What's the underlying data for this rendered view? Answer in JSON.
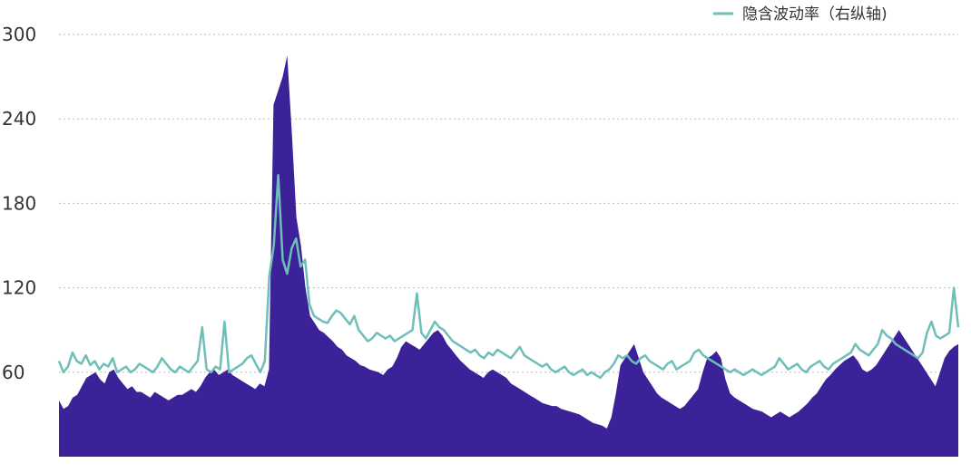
{
  "chart_data": {
    "type": "area",
    "title": "",
    "xlabel": "",
    "ylabel": "",
    "ylim": [
      0,
      300
    ],
    "yticks": [
      "60",
      "120",
      "180",
      "240",
      "300"
    ],
    "grid": true,
    "legend": {
      "position": "top-right",
      "entries": [
        "隐含波动率（右纵轴)"
      ]
    },
    "colors": {
      "area": "#3b2299",
      "line": "#6dbfb8",
      "grid": "#bbbbbb"
    },
    "series": [
      {
        "kind": "area",
        "values": [
          40,
          34,
          36,
          42,
          44,
          50,
          56,
          58,
          60,
          55,
          52,
          60,
          62,
          56,
          52,
          48,
          50,
          46,
          46,
          44,
          42,
          46,
          44,
          42,
          40,
          42,
          44,
          44,
          46,
          48,
          46,
          50,
          56,
          60,
          62,
          58,
          60,
          62,
          58,
          56,
          54,
          52,
          50,
          48,
          52,
          50,
          62,
          250,
          260,
          270,
          285,
          230,
          170,
          150,
          120,
          100,
          95,
          90,
          88,
          85,
          82,
          78,
          76,
          72,
          70,
          68,
          65,
          64,
          62,
          61,
          60,
          58,
          62,
          64,
          70,
          78,
          82,
          80,
          78,
          76,
          80,
          84,
          88,
          90,
          86,
          80,
          76,
          72,
          68,
          65,
          62,
          60,
          58,
          56,
          60,
          62,
          60,
          58,
          56,
          52,
          50,
          48,
          46,
          44,
          42,
          40,
          38,
          37,
          36,
          36,
          34,
          33,
          32,
          31,
          30,
          28,
          26,
          24,
          23,
          22,
          20,
          28,
          45,
          65,
          70,
          75,
          80,
          70,
          60,
          55,
          50,
          45,
          42,
          40,
          38,
          36,
          34,
          36,
          40,
          44,
          48,
          60,
          70,
          72,
          75,
          70,
          55,
          45,
          42,
          40,
          38,
          36,
          34,
          33,
          32,
          30,
          28,
          30,
          32,
          30,
          28,
          30,
          32,
          35,
          38,
          42,
          45,
          50,
          55,
          58,
          62,
          65,
          68,
          70,
          72,
          68,
          62,
          60,
          62,
          65,
          70,
          75,
          80,
          85,
          90,
          85,
          80,
          75,
          70,
          65,
          60,
          55,
          50,
          60,
          70,
          75,
          78,
          80
        ]
      },
      {
        "kind": "line",
        "name": "隐含波动率（右纵轴)",
        "values": [
          68,
          60,
          64,
          74,
          68,
          66,
          72,
          65,
          68,
          62,
          66,
          64,
          70,
          60,
          62,
          64,
          60,
          62,
          66,
          64,
          62,
          60,
          64,
          70,
          66,
          62,
          60,
          64,
          62,
          60,
          64,
          68,
          92,
          62,
          60,
          64,
          62,
          96,
          60,
          62,
          64,
          66,
          70,
          72,
          66,
          60,
          68,
          128,
          150,
          200,
          140,
          130,
          148,
          155,
          135,
          140,
          108,
          100,
          98,
          96,
          95,
          100,
          104,
          102,
          98,
          94,
          100,
          90,
          86,
          82,
          84,
          88,
          86,
          84,
          86,
          82,
          84,
          86,
          88,
          90,
          116,
          88,
          84,
          90,
          96,
          92,
          90,
          86,
          82,
          80,
          78,
          76,
          74,
          76,
          72,
          70,
          74,
          72,
          76,
          74,
          72,
          70,
          74,
          78,
          72,
          70,
          68,
          66,
          64,
          66,
          62,
          60,
          62,
          64,
          60,
          58,
          60,
          62,
          58,
          60,
          58,
          56,
          60,
          62,
          66,
          72,
          70,
          72,
          68,
          66,
          70,
          72,
          68,
          66,
          64,
          62,
          66,
          68,
          62,
          64,
          66,
          68,
          74,
          76,
          72,
          70,
          68,
          66,
          64,
          62,
          60,
          62,
          60,
          58,
          60,
          62,
          60,
          58,
          60,
          62,
          64,
          70,
          66,
          62,
          64,
          66,
          62,
          60,
          64,
          66,
          68,
          64,
          62,
          66,
          68,
          70,
          72,
          74,
          80,
          76,
          74,
          72,
          76,
          80,
          90,
          86,
          84,
          80,
          78,
          76,
          74,
          72,
          70,
          74,
          88,
          96,
          86,
          84,
          86,
          88,
          120,
          92
        ]
      }
    ]
  }
}
